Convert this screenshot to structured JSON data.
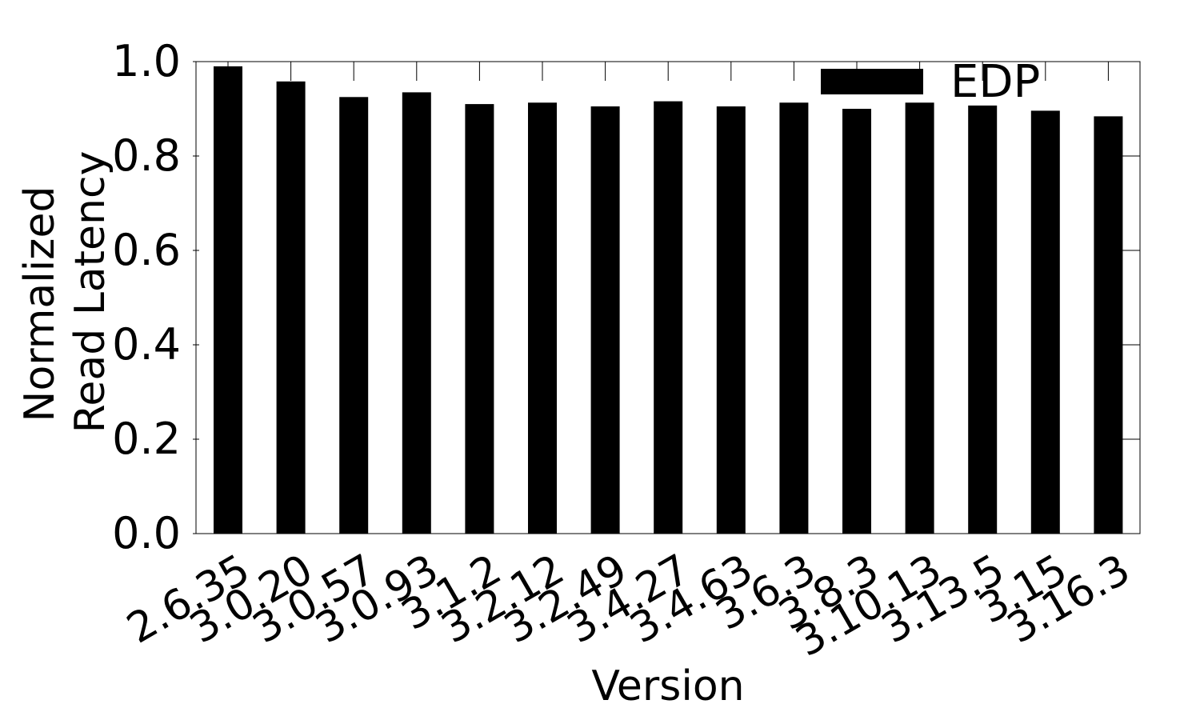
{
  "chart_data": {
    "type": "bar",
    "categories": [
      "2.6.35",
      "3.0.20",
      "3.0.57",
      "3.0.93",
      "3.1.2",
      "3.2.12",
      "3.2.49",
      "3.4.27",
      "3.4.63",
      "3.6.3",
      "3.8.3",
      "3.10.13",
      "3.13.5",
      "3.15",
      "3.16.3"
    ],
    "series": [
      {
        "name": "EDP",
        "values": [
          0.99,
          0.958,
          0.925,
          0.935,
          0.91,
          0.913,
          0.905,
          0.916,
          0.905,
          0.913,
          0.9,
          0.913,
          0.907,
          0.896,
          0.884
        ]
      }
    ],
    "xlabel": "Version",
    "ylabel_lines": [
      "Normalized",
      "Read Latency"
    ],
    "ylim": [
      0,
      1.0
    ],
    "yticks": [
      "0.0",
      "0.2",
      "0.4",
      "0.6",
      "0.8",
      "1.0"
    ],
    "legend_position": "top-right",
    "colors": {
      "bar": "#000000",
      "axis": "#000000"
    },
    "grid": false
  }
}
